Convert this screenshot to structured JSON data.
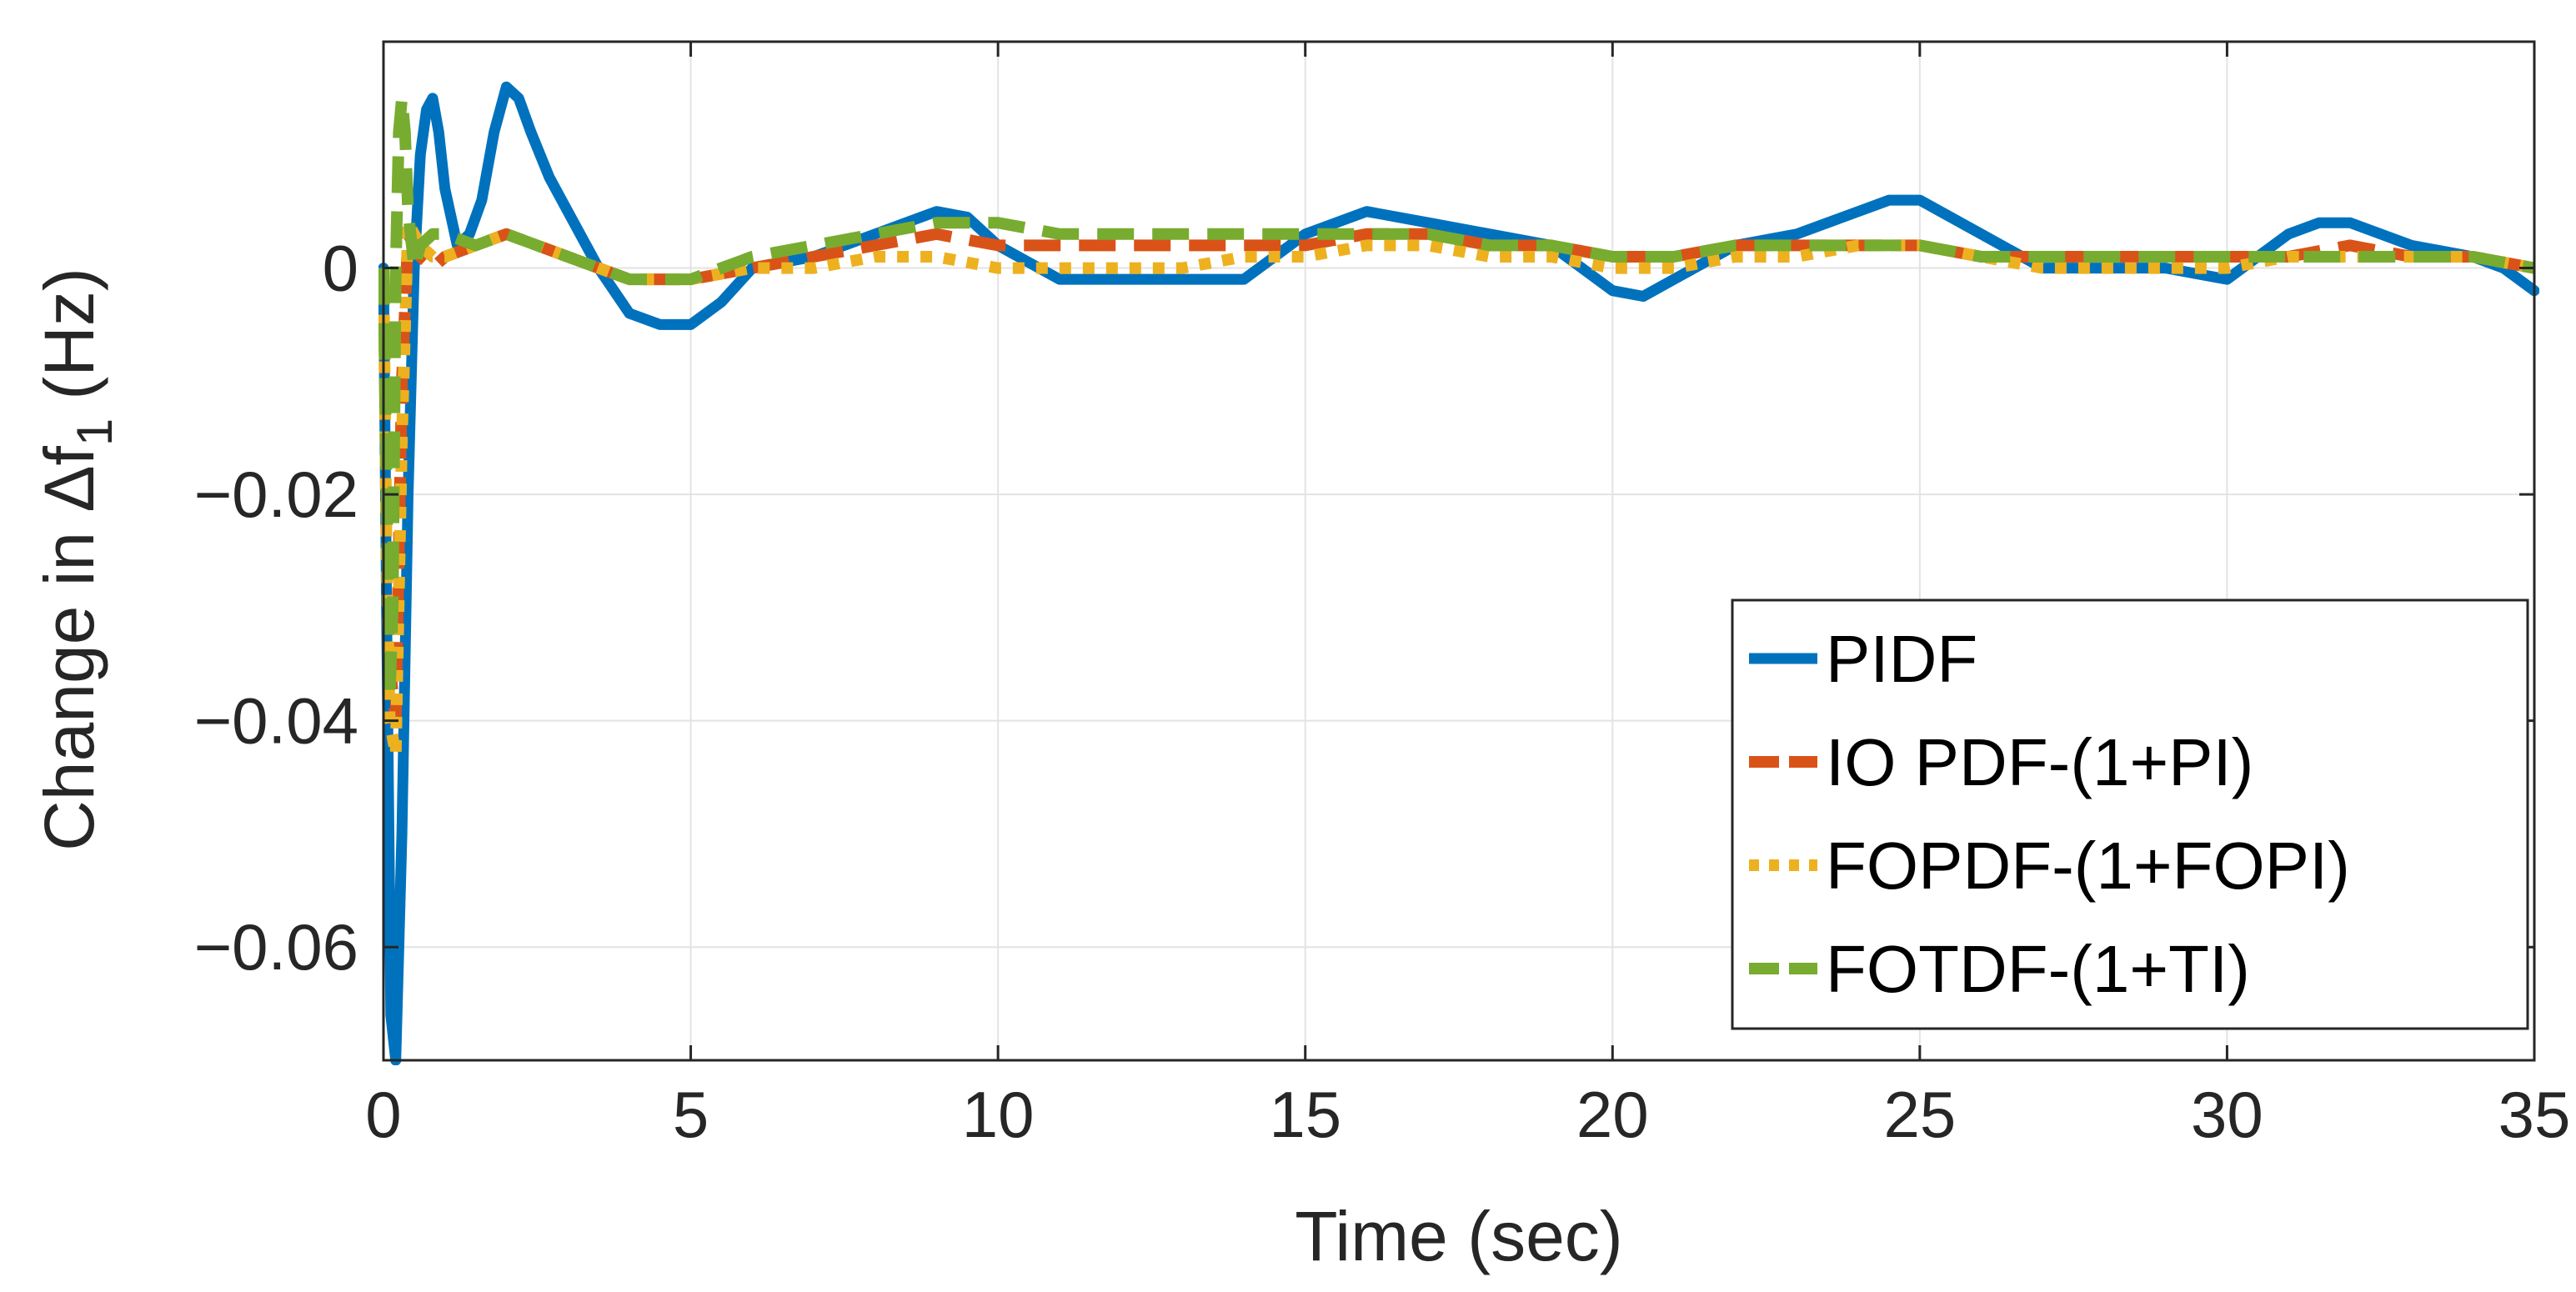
{
  "chart_data": {
    "type": "line",
    "title": "",
    "xlabel": "Time (sec)",
    "ylabel": "Change in Δf",
    "ylabel_subscript": "1",
    "ylabel_unit": "(Hz)",
    "xlim": [
      0,
      35
    ],
    "ylim": [
      -0.07,
      0.02
    ],
    "xticks": [
      0,
      5,
      10,
      15,
      20,
      25,
      30,
      35
    ],
    "xtick_labels": [
      "0",
      "5",
      "10",
      "15",
      "20",
      "25",
      "30",
      "35"
    ],
    "yticks": [
      0,
      -0.02,
      -0.04,
      -0.06
    ],
    "ytick_labels": [
      "0",
      "−0.02",
      "−0.04",
      "−0.06"
    ],
    "grid": true,
    "legend_position": "bottom-right",
    "series": [
      {
        "name": "PIDF",
        "color": "#0072BD",
        "style": "solid",
        "x": [
          0,
          0.05,
          0.12,
          0.2,
          0.3,
          0.4,
          0.5,
          0.6,
          0.7,
          0.8,
          0.9,
          1.0,
          1.2,
          1.4,
          1.6,
          1.8,
          2.0,
          2.2,
          2.4,
          2.7,
          3.0,
          3.5,
          4.0,
          4.5,
          5.0,
          5.5,
          6.0,
          7.0,
          8.0,
          9.0,
          9.5,
          10.0,
          11.0,
          12.0,
          13.0,
          14.0,
          15.0,
          16.0,
          17.0,
          18.0,
          19.0,
          20.0,
          20.5,
          21.0,
          22.0,
          23.0,
          24.0,
          24.5,
          25.0,
          26.0,
          27.0,
          28.0,
          29.0,
          30.0,
          31.0,
          31.5,
          32.0,
          33.0,
          34.0,
          34.5,
          35.0
        ],
        "y": [
          0.0,
          -0.03,
          -0.066,
          -0.07,
          -0.05,
          -0.02,
          0.0,
          0.01,
          0.014,
          0.015,
          0.012,
          0.007,
          0.002,
          0.003,
          0.006,
          0.012,
          0.016,
          0.015,
          0.012,
          0.008,
          0.005,
          0.0,
          -0.004,
          -0.005,
          -0.005,
          -0.003,
          0.0,
          0.001,
          0.003,
          0.005,
          0.0045,
          0.002,
          -0.001,
          -0.001,
          -0.001,
          -0.001,
          0.003,
          0.005,
          0.004,
          0.003,
          0.002,
          -0.002,
          -0.0025,
          -0.001,
          0.002,
          0.003,
          0.005,
          0.006,
          0.006,
          0.003,
          0.0,
          0.0,
          0.0,
          -0.001,
          0.003,
          0.004,
          0.004,
          0.002,
          0.001,
          0.0,
          -0.002
        ]
      },
      {
        "name": "IO PDF-(1+PI)",
        "color": "#D95319",
        "style": "dashed",
        "x": [
          0,
          0.05,
          0.1,
          0.2,
          0.3,
          0.4,
          0.6,
          0.8,
          1.0,
          1.5,
          2.0,
          2.5,
          3.0,
          3.5,
          4.0,
          4.5,
          5.0,
          6.0,
          7.0,
          8.0,
          9.0,
          10.0,
          11.0,
          12.0,
          13.0,
          14.0,
          15.0,
          16.0,
          17.0,
          18.0,
          19.0,
          20.0,
          21.0,
          22.0,
          23.0,
          24.0,
          25.0,
          26.0,
          27.0,
          28.0,
          29.0,
          30.0,
          31.0,
          32.0,
          33.0,
          34.0,
          35.0
        ],
        "y": [
          0.0,
          -0.02,
          -0.035,
          -0.04,
          -0.01,
          0.003,
          0.001,
          0.0,
          0.001,
          0.002,
          0.003,
          0.002,
          0.001,
          0.0,
          -0.001,
          -0.001,
          -0.001,
          0.0,
          0.001,
          0.002,
          0.003,
          0.002,
          0.002,
          0.002,
          0.002,
          0.002,
          0.002,
          0.003,
          0.003,
          0.002,
          0.002,
          0.001,
          0.001,
          0.002,
          0.002,
          0.002,
          0.002,
          0.001,
          0.001,
          0.001,
          0.001,
          0.001,
          0.001,
          0.002,
          0.001,
          0.001,
          0.0
        ]
      },
      {
        "name": "FOPDF-(1+FOPI)",
        "color": "#EDB120",
        "style": "dotted",
        "x": [
          0,
          0.05,
          0.1,
          0.2,
          0.3,
          0.4,
          0.6,
          0.8,
          1.0,
          1.5,
          2.0,
          2.5,
          3.0,
          3.5,
          4.0,
          4.5,
          5.0,
          6.0,
          7.0,
          8.0,
          9.0,
          10.0,
          11.0,
          12.0,
          13.0,
          14.0,
          15.0,
          16.0,
          17.0,
          18.0,
          19.0,
          20.0,
          21.0,
          22.0,
          23.0,
          24.0,
          25.0,
          26.0,
          27.0,
          28.0,
          29.0,
          30.0,
          31.0,
          32.0,
          33.0,
          34.0,
          35.0
        ],
        "y": [
          0.0,
          -0.025,
          -0.04,
          -0.043,
          -0.015,
          0.004,
          0.002,
          0.001,
          0.001,
          0.002,
          0.003,
          0.002,
          0.001,
          0.0,
          -0.001,
          -0.001,
          -0.001,
          0.0,
          0.0,
          0.001,
          0.001,
          0.0,
          0.0,
          0.0,
          0.0,
          0.001,
          0.001,
          0.002,
          0.002,
          0.001,
          0.001,
          0.0,
          0.0,
          0.001,
          0.001,
          0.002,
          0.002,
          0.001,
          0.0,
          0.0,
          0.0,
          0.0,
          0.001,
          0.001,
          0.001,
          0.001,
          0.0
        ]
      },
      {
        "name": "FOTDF-(1+TI)",
        "color": "#77AC30",
        "style": "dashed",
        "x": [
          0,
          0.05,
          0.1,
          0.15,
          0.2,
          0.25,
          0.3,
          0.35,
          0.4,
          0.5,
          0.6,
          0.8,
          1.0,
          1.5,
          2.0,
          2.5,
          3.0,
          3.5,
          4.0,
          4.5,
          5.0,
          6.0,
          7.0,
          8.0,
          9.0,
          10.0,
          11.0,
          12.0,
          13.0,
          14.0,
          15.0,
          16.0,
          17.0,
          18.0,
          19.0,
          20.0,
          21.0,
          22.0,
          23.0,
          24.0,
          25.0,
          26.0,
          27.0,
          28.0,
          29.0,
          30.0,
          31.0,
          32.0,
          33.0,
          34.0,
          35.0
        ],
        "y": [
          0.0,
          -0.02,
          -0.038,
          -0.03,
          0.0,
          0.012,
          0.015,
          0.012,
          0.005,
          0.0,
          0.002,
          0.003,
          0.003,
          0.002,
          0.003,
          0.002,
          0.001,
          0.0,
          -0.001,
          -0.001,
          -0.001,
          0.001,
          0.002,
          0.003,
          0.004,
          0.004,
          0.003,
          0.003,
          0.003,
          0.003,
          0.003,
          0.003,
          0.003,
          0.002,
          0.002,
          0.001,
          0.001,
          0.002,
          0.002,
          0.002,
          0.002,
          0.001,
          0.001,
          0.001,
          0.001,
          0.001,
          0.001,
          0.001,
          0.001,
          0.001,
          0.0
        ]
      }
    ]
  }
}
